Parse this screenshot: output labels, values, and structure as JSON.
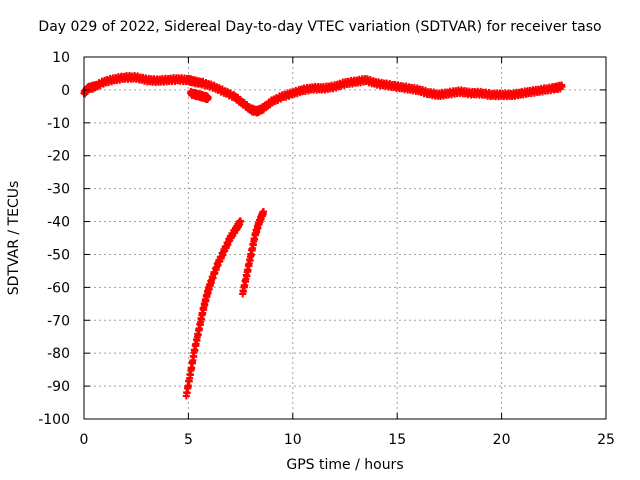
{
  "chart_data": {
    "type": "scatter",
    "title": "Day 029 of 2022, Sidereal Day-to-day VTEC variation (SDTVAR) for receiver taso",
    "xlabel": "GPS time / hours",
    "ylabel": "SDTVAR / TECUs",
    "xlim": [
      0,
      25
    ],
    "ylim": [
      -100,
      10
    ],
    "xticks": [
      0,
      5,
      10,
      15,
      20,
      25
    ],
    "yticks": [
      10,
      0,
      -10,
      -20,
      -30,
      -40,
      -50,
      -60,
      -70,
      -80,
      -90,
      -100
    ],
    "grid": true,
    "color": "#ff0000",
    "marker": "plus",
    "series": [
      {
        "values": [
          [
            0.0,
            -1.0
          ],
          [
            0.2,
            0.5
          ],
          [
            0.5,
            1.0
          ],
          [
            1.0,
            2.5
          ],
          [
            1.5,
            3.3
          ],
          [
            2.0,
            3.8
          ],
          [
            2.5,
            3.8
          ],
          [
            3.0,
            3.0
          ],
          [
            3.5,
            2.8
          ],
          [
            4.0,
            3.0
          ],
          [
            4.5,
            3.2
          ],
          [
            5.0,
            3.0
          ],
          [
            5.3,
            2.5
          ],
          [
            5.7,
            2.0
          ],
          [
            6.2,
            1.0
          ],
          [
            6.7,
            -0.5
          ],
          [
            7.2,
            -2.0
          ],
          [
            7.6,
            -4.0
          ],
          [
            8.0,
            -6.0
          ],
          [
            8.3,
            -6.5
          ],
          [
            8.6,
            -5.5
          ],
          [
            9.0,
            -3.5
          ],
          [
            9.5,
            -2.0
          ],
          [
            10.0,
            -1.0
          ],
          [
            10.5,
            0.0
          ],
          [
            11.0,
            0.5
          ],
          [
            11.5,
            0.5
          ],
          [
            12.0,
            1.0
          ],
          [
            12.5,
            2.0
          ],
          [
            13.0,
            2.5
          ],
          [
            13.5,
            3.0
          ],
          [
            14.0,
            2.0
          ],
          [
            14.5,
            1.5
          ],
          [
            15.0,
            1.0
          ],
          [
            15.5,
            0.5
          ],
          [
            16.0,
            0.0
          ],
          [
            16.5,
            -1.0
          ],
          [
            17.0,
            -1.5
          ],
          [
            17.5,
            -1.0
          ],
          [
            18.0,
            -0.5
          ],
          [
            18.5,
            -1.0
          ],
          [
            19.0,
            -1.0
          ],
          [
            19.5,
            -1.5
          ],
          [
            20.0,
            -1.5
          ],
          [
            20.5,
            -1.5
          ],
          [
            21.0,
            -1.0
          ],
          [
            21.5,
            -0.5
          ],
          [
            22.0,
            0.0
          ],
          [
            22.5,
            0.5
          ],
          [
            22.9,
            1.0
          ]
        ]
      },
      {
        "values": [
          [
            5.1,
            -1.0
          ],
          [
            5.4,
            -1.5
          ],
          [
            5.7,
            -2.0
          ],
          [
            5.95,
            -2.5
          ]
        ]
      },
      {
        "values": [
          [
            4.9,
            -93
          ],
          [
            5.1,
            -86
          ],
          [
            5.3,
            -79
          ],
          [
            5.5,
            -73
          ],
          [
            5.7,
            -67
          ],
          [
            5.9,
            -62
          ],
          [
            6.1,
            -58
          ],
          [
            6.4,
            -53
          ],
          [
            6.7,
            -49
          ],
          [
            7.0,
            -45
          ],
          [
            7.3,
            -42
          ],
          [
            7.5,
            -40
          ]
        ]
      },
      {
        "values": [
          [
            7.6,
            -62
          ],
          [
            7.8,
            -56
          ],
          [
            8.0,
            -50
          ],
          [
            8.2,
            -44
          ],
          [
            8.4,
            -40
          ],
          [
            8.6,
            -37
          ]
        ]
      }
    ]
  }
}
